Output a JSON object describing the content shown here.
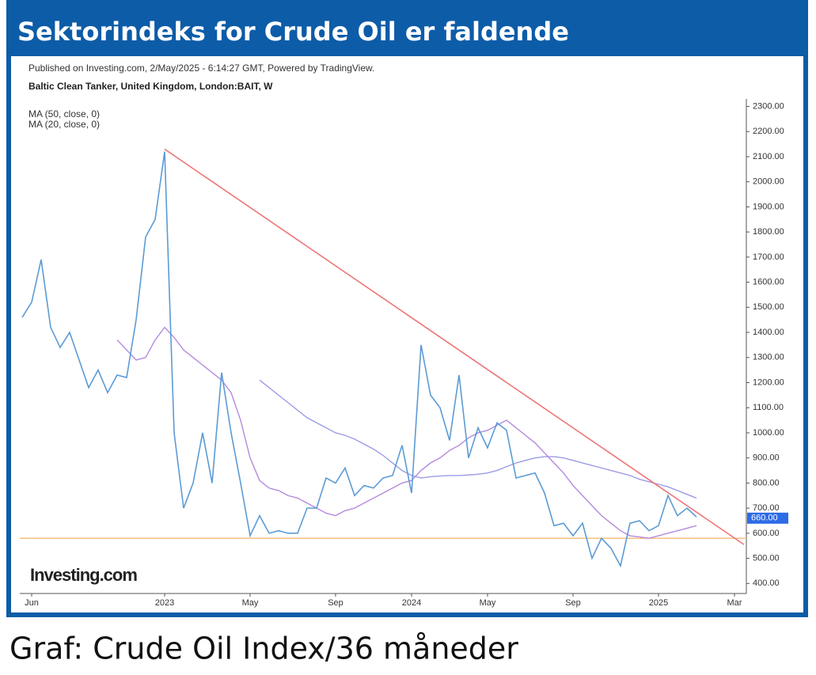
{
  "header": {
    "title": "Sektorindeks for Crude Oil er faldende"
  },
  "caption": "Graf: Crude Oil Index/36 måneder",
  "chart_data": {
    "type": "line",
    "subtitle": "Published on Investing.com, 2/May/2025 - 6:14:27 GMT, Powered by TradingView.",
    "instrument": "Baltic Clean Tanker, United Kingdom, London:BAIT, W",
    "logo": "Investing.com",
    "categories": [
      null,
      "Jun",
      null,
      null,
      null,
      null,
      null,
      null,
      null,
      null,
      null,
      null,
      null,
      null,
      null,
      "2023",
      null,
      null,
      null,
      null,
      null,
      null,
      null,
      null,
      "May",
      null,
      null,
      null,
      null,
      null,
      null,
      null,
      null,
      "Sep",
      null,
      null,
      null,
      null,
      null,
      null,
      null,
      "2024",
      null,
      null,
      null,
      null,
      null,
      null,
      null,
      "May",
      null,
      null,
      null,
      null,
      null,
      null,
      null,
      null,
      "Sep",
      null,
      null,
      null,
      null,
      null,
      null,
      null,
      null,
      "2025",
      null,
      null,
      null,
      null,
      null,
      null,
      null,
      "Mar",
      null
    ],
    "series": [
      {
        "color": "#5b9bd5",
        "values": [
          1460,
          1520,
          1690,
          1420,
          1340,
          1400,
          1290,
          1180,
          1250,
          1160,
          1230,
          1220,
          1450,
          1780,
          1850,
          2120,
          1000,
          700,
          800,
          1000,
          800,
          1240,
          1000,
          800,
          590,
          670,
          600,
          610,
          600,
          600,
          700,
          700,
          820,
          800,
          860,
          750,
          790,
          780,
          820,
          830,
          950,
          760,
          1350,
          1150,
          1100,
          970,
          1230,
          900,
          1020,
          940,
          1040,
          1010,
          820,
          830,
          840,
          760,
          630,
          640,
          590,
          640,
          500,
          580,
          540,
          470,
          640,
          650,
          610,
          630,
          750,
          670,
          700,
          665,
          null,
          null,
          null,
          null,
          null
        ]
      },
      {
        "name": "MA (50, close, 0)",
        "color": "#9c9ce6",
        "values": [
          null,
          null,
          null,
          null,
          null,
          null,
          null,
          null,
          null,
          null,
          null,
          null,
          null,
          null,
          null,
          null,
          null,
          null,
          null,
          null,
          null,
          null,
          null,
          null,
          null,
          1210,
          1180,
          1150,
          1120,
          1090,
          1060,
          1040,
          1020,
          1000,
          990,
          975,
          955,
          935,
          910,
          880,
          850,
          830,
          820,
          825,
          828,
          830,
          830,
          832,
          835,
          840,
          850,
          865,
          880,
          890,
          900,
          905,
          905,
          900,
          890,
          880,
          870,
          860,
          850,
          840,
          830,
          815,
          805,
          795,
          785,
          770,
          755,
          740,
          null,
          null,
          null,
          null,
          null
        ]
      },
      {
        "name": "MA (20, close, 0)",
        "color": "#b48ade",
        "values": [
          null,
          null,
          null,
          null,
          null,
          null,
          null,
          null,
          null,
          null,
          1370,
          1330,
          1290,
          1300,
          1370,
          1420,
          1380,
          1330,
          1300,
          1270,
          1240,
          1210,
          1160,
          1050,
          900,
          810,
          780,
          770,
          750,
          740,
          720,
          700,
          680,
          670,
          690,
          700,
          720,
          740,
          760,
          780,
          800,
          810,
          850,
          880,
          900,
          930,
          950,
          980,
          1000,
          1010,
          1030,
          1050,
          1020,
          990,
          960,
          920,
          880,
          840,
          790,
          750,
          710,
          670,
          640,
          610,
          590,
          585,
          580,
          590,
          600,
          610,
          620,
          630,
          null,
          null,
          null,
          null,
          null
        ]
      }
    ],
    "trend_line": {
      "color": "#ef7575",
      "points": [
        [
          15,
          2130
        ],
        [
          76,
          555
        ]
      ]
    },
    "support_line": {
      "value": 580,
      "color": "#f6c17e"
    },
    "last_value": {
      "value": 660,
      "label": "660.00",
      "color": "#2e6be6"
    },
    "ylim": [
      360,
      2330
    ],
    "yticks": [
      {
        "value": 400,
        "label": "400.00"
      },
      {
        "value": 500,
        "label": "500.00"
      },
      {
        "value": 600,
        "label": "600.00"
      },
      {
        "value": 700,
        "label": "700.00"
      },
      {
        "value": 800,
        "label": "800.00"
      },
      {
        "value": 900,
        "label": "900.00"
      },
      {
        "value": 1000,
        "label": "1000.00"
      },
      {
        "value": 1100,
        "label": "1100.00"
      },
      {
        "value": 1200,
        "label": "1200.00"
      },
      {
        "value": 1300,
        "label": "1300.00"
      },
      {
        "value": 1400,
        "label": "1400.00"
      },
      {
        "value": 1500,
        "label": "1500.00"
      },
      {
        "value": 1600,
        "label": "1600.00"
      },
      {
        "value": 1700,
        "label": "1700.00"
      },
      {
        "value": 1800,
        "label": "1800.00"
      },
      {
        "value": 1900,
        "label": "1900.00"
      },
      {
        "value": 2000,
        "label": "2000.00"
      },
      {
        "value": 2100,
        "label": "2100.00"
      },
      {
        "value": 2200,
        "label": "2200.00"
      },
      {
        "value": 2300,
        "label": "2300.00"
      }
    ]
  }
}
